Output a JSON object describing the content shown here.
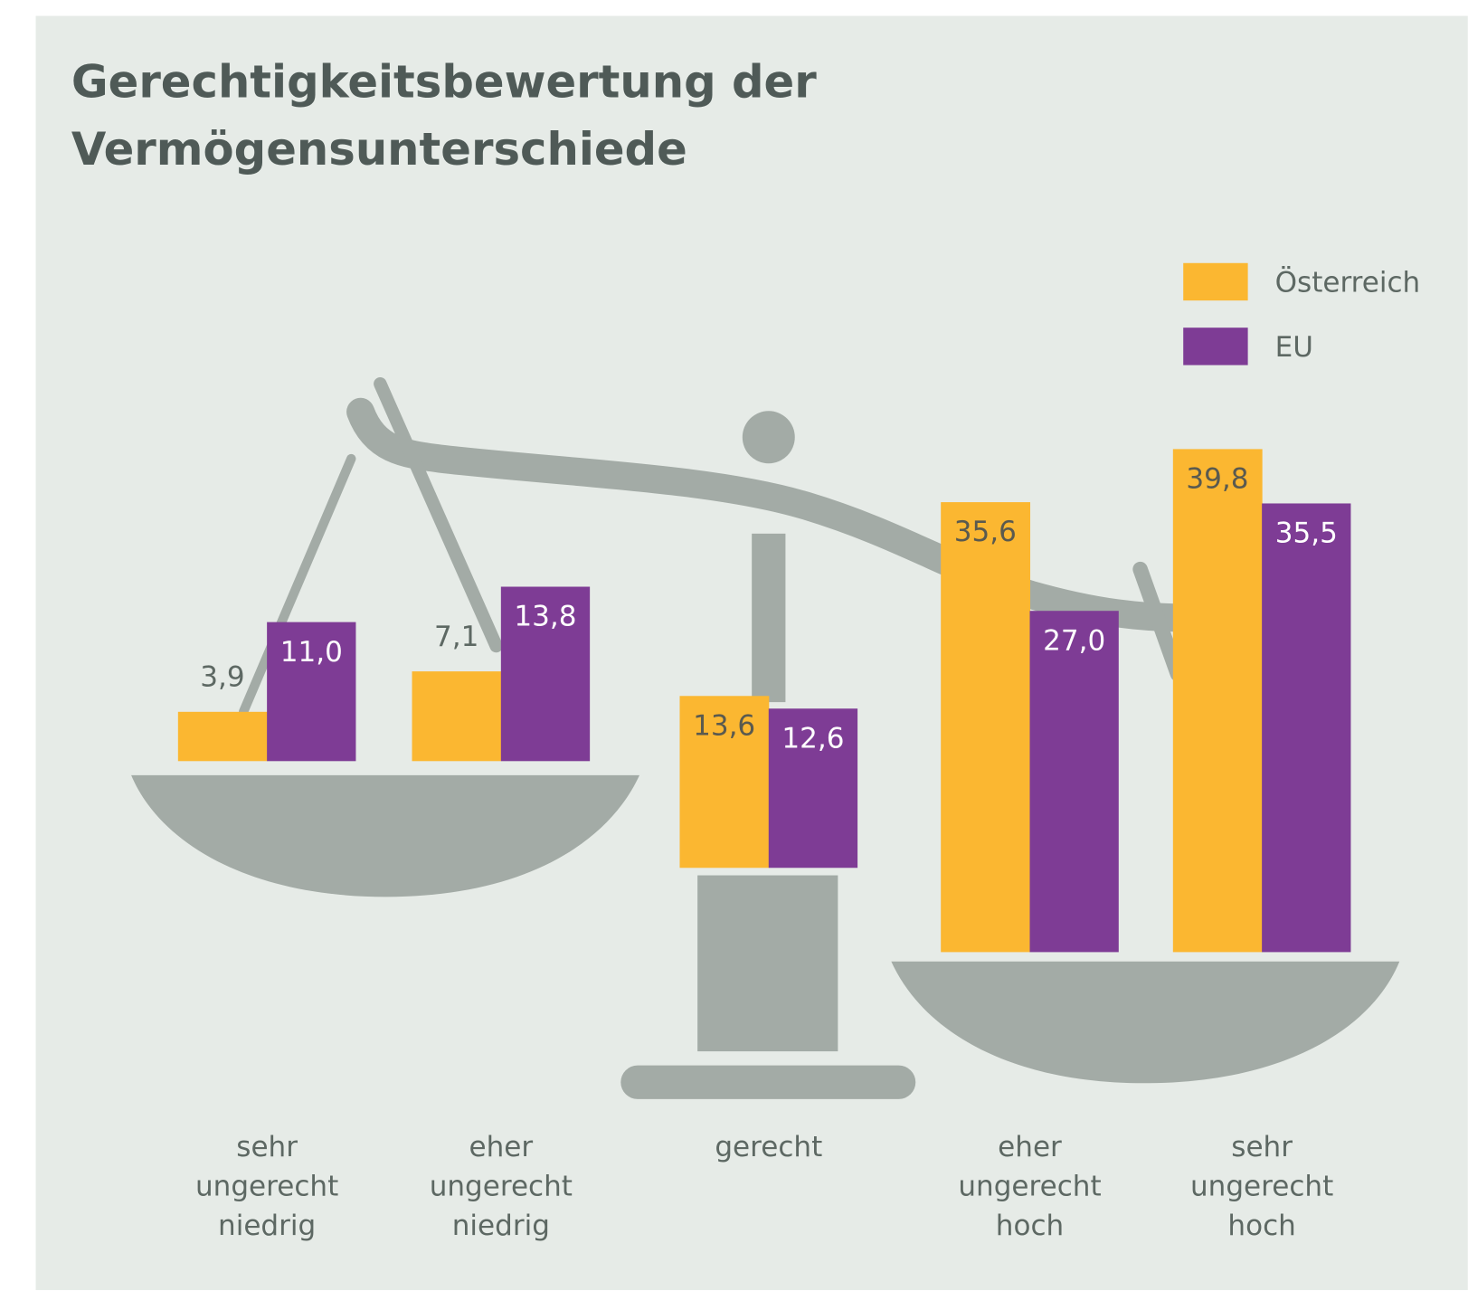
{
  "chart_data": {
    "type": "bar",
    "title": "Gerechtigkeitsbewertung der Vermögensunterschiede",
    "categories": [
      "sehr ungerecht niedrig",
      "eher ungerecht niedrig",
      "gerecht",
      "eher ungerecht hoch",
      "sehr ungerecht hoch"
    ],
    "series": [
      {
        "name": "Österreich",
        "color": "#fbb731",
        "values": [
          3.9,
          7.1,
          13.6,
          35.6,
          39.8
        ],
        "value_labels": [
          "3,9",
          "7,1",
          "13,6",
          "35,6",
          "39,8"
        ]
      },
      {
        "name": "EU",
        "color": "#7e3c95",
        "values": [
          11.0,
          13.8,
          12.6,
          27.0,
          35.5
        ],
        "value_labels": [
          "11,0",
          "13,8",
          "12,6",
          "27,0",
          "35,5"
        ]
      }
    ]
  }
}
